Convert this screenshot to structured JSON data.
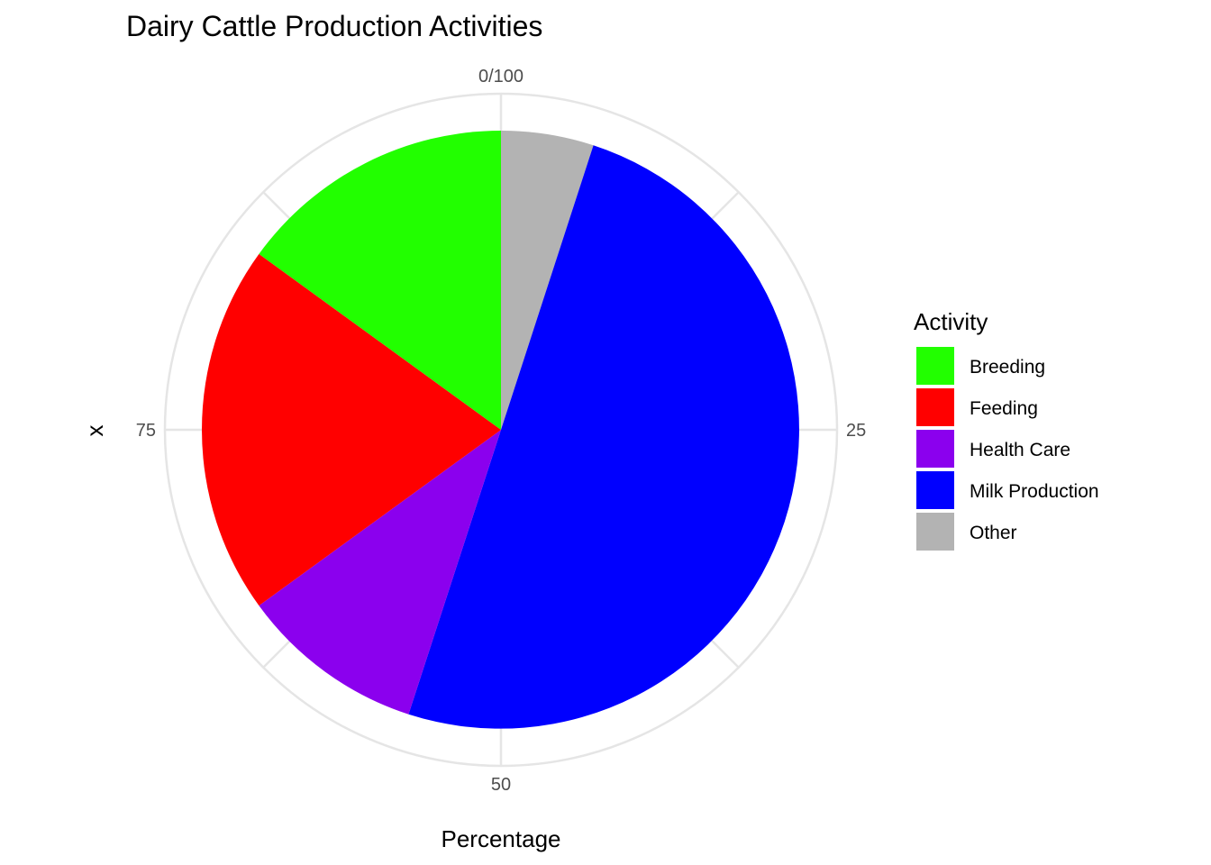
{
  "chart_data": {
    "type": "pie",
    "title": "Dairy Cattle Production Activities",
    "xlabel": "Percentage",
    "ylabel": "x",
    "angle_range": [
      0,
      100
    ],
    "angle_ticks": [
      {
        "value": 0,
        "label": "0/100"
      },
      {
        "value": 25,
        "label": "25"
      },
      {
        "value": 50,
        "label": "50"
      },
      {
        "value": 75,
        "label": "75"
      }
    ],
    "legend": {
      "title": "Activity",
      "position": "right"
    },
    "slices": [
      {
        "label": "Other",
        "value": 5,
        "color": "#B3B3B3"
      },
      {
        "label": "Milk Production",
        "value": 50,
        "color": "#0000FF"
      },
      {
        "label": "Health Care",
        "value": 10,
        "color": "#8B00EE"
      },
      {
        "label": "Feeding",
        "value": 20,
        "color": "#FF0000"
      },
      {
        "label": "Breeding",
        "value": 15,
        "color": "#22FF00"
      }
    ],
    "legend_order": [
      "Breeding",
      "Feeding",
      "Health Care",
      "Milk Production",
      "Other"
    ],
    "grid": true
  }
}
